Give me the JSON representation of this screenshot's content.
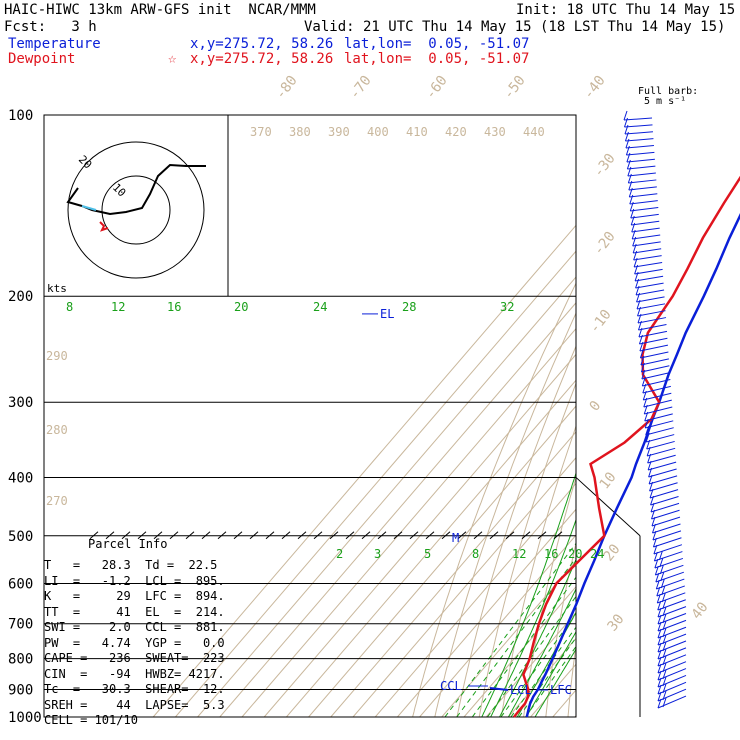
{
  "header": {
    "line1_left": "HAIC-HIWC 13km ARW-GFS init  NCAR/MMM",
    "init": "Init: 18 UTC Thu 14 May 15",
    "fcst": "Fcst:   3 h",
    "valid": "Valid: 21 UTC Thu 14 May 15 (18 LST Thu 14 May 15)",
    "temp_label": "Temperature",
    "temp_xy": "x,y=275.72, 58.26",
    "temp_latlon": "lat,lon=  0.05, -51.07",
    "dew_label": "Dewpoint",
    "dew_star": "☆",
    "dew_xy": "x,y=275.72, 58.26",
    "dew_latlon": "lat,lon=  0.05, -51.07"
  },
  "barb_legend": {
    "line1": "Full barb:",
    "line2": "5 m s⁻¹"
  },
  "hodograph": {
    "units": "kts",
    "ring_labels": [
      "10",
      "20"
    ]
  },
  "parcel_info": {
    "title": "Parcel Info",
    "rows": [
      "T   =   28.3  Td =  22.5",
      "LI  =   -1.2  LCL =  895.",
      "K   =     29  LFC =  894.",
      "TT  =     41  EL  =  214.",
      "SWI =    2.0  CCL =  881.",
      "PW  =   4.74  YGP =   0.0",
      "CAPE =   236  SWEAT=  223",
      "CIN  =   -94  HWBZ= 4217.",
      "Tc  =   30.3  SHEAR=  12.",
      "SREH =    44  LAPSE=  5.3",
      "CELL = 101/10"
    ]
  },
  "levels": {
    "el": "EL",
    "ccl": "CCL",
    "lcl": "LCL",
    "lfc": "LFC",
    "m": "M"
  },
  "colors": {
    "temperature": "#0a1fd8",
    "dewpoint": "#e0141e",
    "isotherm": "#c9b79c",
    "mixing_ratio": "#1aa01a",
    "hodo_black": "#000000",
    "hodo_cyan": "#4fc0e8"
  },
  "chart_data": {
    "type": "line",
    "title": "HAIC-HIWC 13km ARW-GFS init  NCAR/MMM",
    "ylabel": "",
    "xlabel": "",
    "pressure_ticks": [
      100,
      200,
      300,
      400,
      500,
      600,
      700,
      800,
      900,
      1000
    ],
    "isotherm_labels": [
      "-80",
      "-70",
      "-60",
      "-50",
      "-40",
      "-30",
      "-20",
      "-10",
      "0",
      "10",
      "20",
      "30",
      "40"
    ],
    "dry_adiabat_labels_top": [
      "370",
      "380",
      "390",
      "400",
      "410",
      "420",
      "430",
      "440"
    ],
    "dry_adiabat_labels_left": [
      "290",
      "280",
      "270"
    ],
    "moist_adiabat_labels": [
      "8",
      "12",
      "16",
      "20",
      "24",
      "28",
      "32"
    ],
    "mixing_ratio_labels": [
      "2",
      "3",
      "5",
      "8",
      "12",
      "16",
      "20",
      "24"
    ],
    "series": [
      {
        "name": "Temperature",
        "pressure": [
          1000,
          975,
          950,
          925,
          900,
          875,
          850,
          800,
          750,
          700,
          650,
          600,
          550,
          500,
          450,
          400,
          380,
          350,
          320,
          300,
          270,
          250,
          230,
          200,
          180,
          160,
          140,
          120,
          100
        ],
        "temperature_c": [
          28.3,
          26.4,
          24.6,
          23.3,
          22.6,
          21.4,
          20.2,
          17.3,
          14.1,
          10.6,
          6.9,
          2.5,
          -1.9,
          -7.0,
          -12.0,
          -17.3,
          -20.5,
          -25.0,
          -30.5,
          -34.0,
          -40.5,
          -44.5,
          -49.0,
          -55.0,
          -60.0,
          -66.0,
          -72.0,
          -76.0,
          -79.0
        ]
      },
      {
        "name": "Dewpoint",
        "pressure": [
          1000,
          975,
          950,
          925,
          900,
          875,
          850,
          800,
          750,
          700,
          650,
          600,
          550,
          500,
          450,
          400,
          380,
          350,
          320,
          300,
          270,
          250,
          230,
          200,
          180,
          160,
          140,
          120,
          100
        ],
        "temperature_c": [
          22.5,
          22.3,
          22.3,
          21.0,
          18.3,
          14.3,
          10.3,
          7.0,
          2.3,
          -2.4,
          -6.7,
          -10.1,
          -8.7,
          -7.0,
          -20.0,
          -34.0,
          -41.0,
          -34.0,
          -31.0,
          -34.0,
          -52.0,
          -60.0,
          -66.0,
          -69.0,
          -73.0,
          -78.0,
          -82.0,
          -86.0,
          -90.0
        ]
      }
    ],
    "wind_barbs": [
      "winds plotted at right"
    ]
  }
}
